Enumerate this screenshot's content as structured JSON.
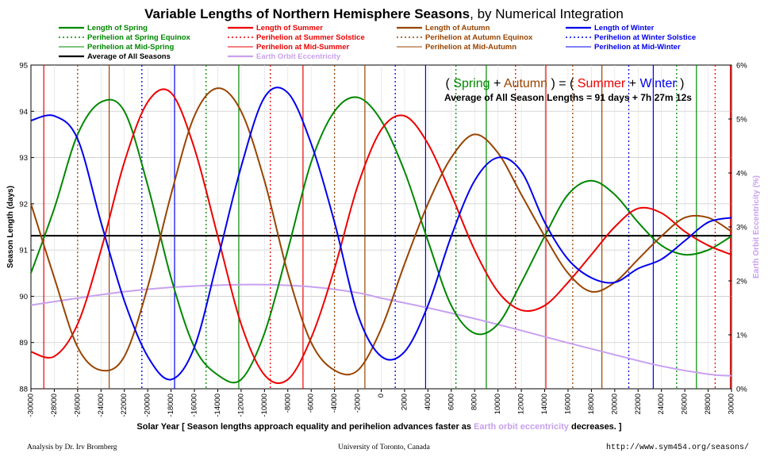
{
  "title": "Variable Lengths of Northern Hemisphere Seasons",
  "subtitle": ", by Numerical Integration",
  "colors": {
    "spring": "#008800",
    "summer": "#ee0000",
    "autumn": "#994400",
    "winter": "#0000ee",
    "average": "#000000",
    "eccentricity": "#c8a0f0"
  },
  "legend": [
    {
      "label": "Length of Spring",
      "series": "spring",
      "style": "thick"
    },
    {
      "label": "Perihelion at Spring Equinox",
      "series": "spring",
      "style": "dotted"
    },
    {
      "label": "Perihelion at Mid-Spring",
      "series": "spring",
      "style": "thin"
    },
    {
      "label": "Average of All Seasons",
      "series": "average",
      "style": "thick"
    },
    {
      "label": "Length of Summer",
      "series": "summer",
      "style": "thick"
    },
    {
      "label": "Perihelion at Summer Solstice",
      "series": "summer",
      "style": "dotted"
    },
    {
      "label": "Perihelion at Mid-Summer",
      "series": "summer",
      "style": "thin"
    },
    {
      "label": "Earth Orbit Eccentricity",
      "series": "eccentricity",
      "style": "thick"
    },
    {
      "label": "Length of Autumn",
      "series": "autumn",
      "style": "thick"
    },
    {
      "label": "Perihelion at Autumn Equinox",
      "series": "autumn",
      "style": "dotted"
    },
    {
      "label": "Perihelion at Mid-Autumn",
      "series": "autumn",
      "style": "thin"
    },
    {
      "label": "Length of Winter",
      "series": "winter",
      "style": "thick"
    },
    {
      "label": "Perihelion at Winter Solstice",
      "series": "winter",
      "style": "dotted"
    },
    {
      "label": "Perihelion at Mid-Winter",
      "series": "winter",
      "style": "thin"
    }
  ],
  "annotation": {
    "open": "( ",
    "spring": "Spring",
    "plus1": " + ",
    "autumn": "Autumn",
    "mid": " ) = ( ",
    "summer": "Summer",
    "plus2": " + ",
    "winter": "Winter",
    "close": " )",
    "average_text": "Average of All Season Lengths = 91 days + 7h 27m 12s"
  },
  "xlabel_parts": {
    "pre": "Solar Year [ Season lengths approach equality and perihelion advances faster as ",
    "highlight": "Earth orbit eccentricity",
    "post": " decreases. ]"
  },
  "ylabel_left": "Season Length (days)",
  "ylabel_right": "Earth Orbit Eccentricity (%)",
  "footer": {
    "left": "Analysis by Dr. Irv Bromberg",
    "center": "University of Toronto, Canada",
    "right": "http://www.sym454.org/seasons/"
  },
  "chart_data": {
    "type": "line",
    "title": "Variable Lengths of Northern Hemisphere Seasons, by Numerical Integration",
    "xlabel": "Solar Year [ Season lengths approach equality and perihelion advances faster as Earth orbit eccentricity decreases. ]",
    "ylabel": "Season Length (days)",
    "y2label": "Earth Orbit Eccentricity (%)",
    "xlim": [
      -30000,
      30000
    ],
    "ylim": [
      88,
      95
    ],
    "y2lim": [
      0,
      6
    ],
    "x_ticks": [
      -30000,
      -28000,
      -26000,
      -24000,
      -22000,
      -20000,
      -18000,
      -16000,
      -14000,
      -12000,
      -10000,
      -8000,
      -6000,
      -4000,
      -2000,
      0,
      2000,
      4000,
      6000,
      8000,
      10000,
      12000,
      14000,
      16000,
      18000,
      20000,
      22000,
      24000,
      26000,
      28000,
      30000
    ],
    "y_ticks": [
      88,
      89,
      90,
      91,
      92,
      93,
      94,
      95
    ],
    "y2_ticks": [
      "0%",
      "1%",
      "2%",
      "3%",
      "4%",
      "5%",
      "6%"
    ],
    "grid": true,
    "average_days": 91.31,
    "series": [
      {
        "name": "Length of Spring",
        "key": "spring",
        "x": [
          -30000,
          -28000,
          -26000,
          -24000,
          -22000,
          -20000,
          -18000,
          -16000,
          -14000,
          -12000,
          -10000,
          -8000,
          -6000,
          -4000,
          -2000,
          0,
          2000,
          4000,
          6000,
          8000,
          10000,
          12000,
          14000,
          16000,
          18000,
          20000,
          22000,
          24000,
          26000,
          28000,
          30000
        ],
        "y": [
          90.5,
          91.9,
          93.5,
          94.2,
          94.0,
          92.4,
          90.4,
          88.9,
          88.3,
          88.2,
          89.2,
          91.0,
          92.9,
          94.0,
          94.3,
          93.8,
          92.7,
          91.2,
          89.8,
          89.2,
          89.4,
          90.3,
          91.3,
          92.2,
          92.5,
          92.2,
          91.6,
          91.1,
          90.9,
          91.0,
          91.3
        ]
      },
      {
        "name": "Length of Summer",
        "key": "summer",
        "x": [
          -30000,
          -28000,
          -26000,
          -24000,
          -22000,
          -20000,
          -18000,
          -16000,
          -14000,
          -12000,
          -10000,
          -8000,
          -6000,
          -4000,
          -2000,
          0,
          2000,
          4000,
          6000,
          8000,
          10000,
          12000,
          14000,
          16000,
          18000,
          20000,
          22000,
          24000,
          26000,
          28000,
          30000
        ],
        "y": [
          88.8,
          88.7,
          89.4,
          91.0,
          92.9,
          94.2,
          94.4,
          93.2,
          91.3,
          89.4,
          88.3,
          88.2,
          89.1,
          90.6,
          92.4,
          93.6,
          93.9,
          93.3,
          92.2,
          91.0,
          90.1,
          89.7,
          89.8,
          90.3,
          90.9,
          91.5,
          91.9,
          91.8,
          91.4,
          91.1,
          90.9
        ]
      },
      {
        "name": "Length of Autumn",
        "key": "autumn",
        "x": [
          -30000,
          -28000,
          -26000,
          -24000,
          -22000,
          -20000,
          -18000,
          -16000,
          -14000,
          -12000,
          -10000,
          -8000,
          -6000,
          -4000,
          -2000,
          0,
          2000,
          4000,
          6000,
          8000,
          10000,
          12000,
          14000,
          16000,
          18000,
          20000,
          22000,
          24000,
          26000,
          28000,
          30000
        ],
        "y": [
          92.0,
          90.4,
          88.9,
          88.4,
          88.7,
          90.2,
          92.2,
          93.9,
          94.5,
          94.0,
          92.5,
          90.5,
          89.0,
          88.4,
          88.4,
          89.3,
          90.7,
          92.0,
          93.0,
          93.5,
          93.1,
          92.2,
          91.3,
          90.5,
          90.1,
          90.3,
          90.8,
          91.3,
          91.7,
          91.7,
          91.4
        ]
      },
      {
        "name": "Length of Winter",
        "key": "winter",
        "x": [
          -30000,
          -28000,
          -26000,
          -24000,
          -22000,
          -20000,
          -18000,
          -16000,
          -14000,
          -12000,
          -10000,
          -8000,
          -6000,
          -4000,
          -2000,
          0,
          2000,
          4000,
          6000,
          8000,
          10000,
          12000,
          14000,
          16000,
          18000,
          20000,
          22000,
          24000,
          26000,
          28000,
          30000
        ],
        "y": [
          93.8,
          93.9,
          93.4,
          91.6,
          89.9,
          88.7,
          88.2,
          88.9,
          90.8,
          92.8,
          94.3,
          94.4,
          93.3,
          91.6,
          89.6,
          88.7,
          88.8,
          89.8,
          91.3,
          92.5,
          93.0,
          92.7,
          91.6,
          90.8,
          90.4,
          90.3,
          90.6,
          90.8,
          91.2,
          91.6,
          91.7
        ]
      },
      {
        "name": "Earth Orbit Eccentricity",
        "key": "eccentricity",
        "axis": "y2",
        "x": [
          -30000,
          -26000,
          -22000,
          -18000,
          -14000,
          -10000,
          -6000,
          -2000,
          0,
          4000,
          8000,
          12000,
          16000,
          20000,
          24000,
          28000,
          30000
        ],
        "y": [
          1.55,
          1.68,
          1.8,
          1.88,
          1.92,
          1.93,
          1.89,
          1.78,
          1.68,
          1.5,
          1.3,
          1.08,
          0.85,
          0.63,
          0.42,
          0.27,
          0.24
        ]
      }
    ],
    "perihelion_lines": [
      {
        "x": -28900,
        "series": "summer",
        "style": "thin"
      },
      {
        "x": -26000,
        "series": "autumn",
        "style": "dotted"
      },
      {
        "x": -23300,
        "series": "autumn",
        "style": "thin"
      },
      {
        "x": -20500,
        "series": "winter",
        "style": "dotted"
      },
      {
        "x": -17700,
        "series": "winter",
        "style": "thin"
      },
      {
        "x": -15000,
        "series": "spring",
        "style": "dotted"
      },
      {
        "x": -12200,
        "series": "spring",
        "style": "thin"
      },
      {
        "x": -9500,
        "series": "summer",
        "style": "dotted"
      },
      {
        "x": -6700,
        "series": "summer",
        "style": "thin"
      },
      {
        "x": -4000,
        "series": "autumn",
        "style": "dotted"
      },
      {
        "x": -1400,
        "series": "autumn",
        "style": "thin"
      },
      {
        "x": 1200,
        "series": "winter",
        "style": "dotted"
      },
      {
        "x": 3800,
        "series": "winter",
        "style": "thin"
      },
      {
        "x": 6400,
        "series": "spring",
        "style": "dotted"
      },
      {
        "x": 9000,
        "series": "spring",
        "style": "thin"
      },
      {
        "x": 11500,
        "series": "summer",
        "style": "dotted"
      },
      {
        "x": 14100,
        "series": "summer",
        "style": "thin"
      },
      {
        "x": 16400,
        "series": "autumn",
        "style": "dotted"
      },
      {
        "x": 18900,
        "series": "autumn",
        "style": "thin"
      },
      {
        "x": 21200,
        "series": "winter",
        "style": "dotted"
      },
      {
        "x": 23300,
        "series": "winter",
        "style": "thin"
      },
      {
        "x": 25300,
        "series": "spring",
        "style": "dotted"
      },
      {
        "x": 27000,
        "series": "spring",
        "style": "thin"
      },
      {
        "x": 28600,
        "series": "summer",
        "style": "dotted"
      },
      {
        "x": 29900,
        "series": "summer",
        "style": "thin"
      }
    ]
  }
}
